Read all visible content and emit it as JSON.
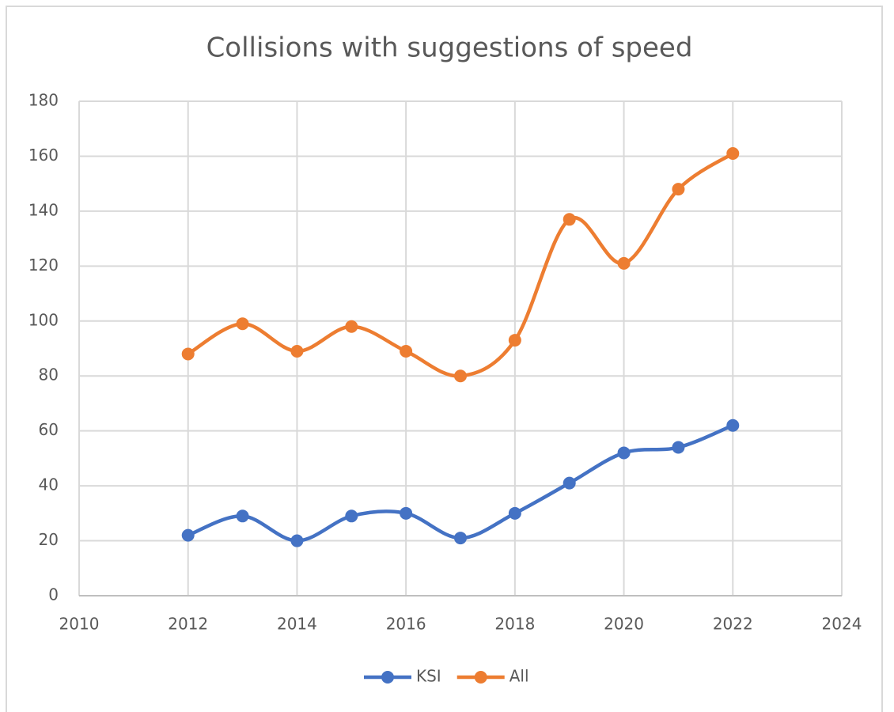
{
  "chart_data": {
    "type": "line",
    "title": "Collisions with suggestions of speed",
    "x": [
      2012,
      2013,
      2014,
      2015,
      2016,
      2017,
      2018,
      2019,
      2020,
      2021,
      2022
    ],
    "series": [
      {
        "name": "KSI",
        "color": "#4472c4",
        "values": [
          22,
          29,
          20,
          29,
          30,
          21,
          30,
          41,
          52,
          54,
          62
        ]
      },
      {
        "name": "All",
        "color": "#ed7d31",
        "values": [
          88,
          99,
          89,
          98,
          89,
          80,
          93,
          137,
          121,
          148,
          161
        ]
      }
    ],
    "xlim": [
      2010,
      2024
    ],
    "xticks": [
      2010,
      2012,
      2014,
      2016,
      2018,
      2020,
      2022,
      2024
    ],
    "ylim": [
      0,
      180
    ],
    "yticks": [
      0,
      20,
      40,
      60,
      80,
      100,
      120,
      140,
      160,
      180
    ],
    "grid": true,
    "smooth": true,
    "legend": "bottom"
  }
}
